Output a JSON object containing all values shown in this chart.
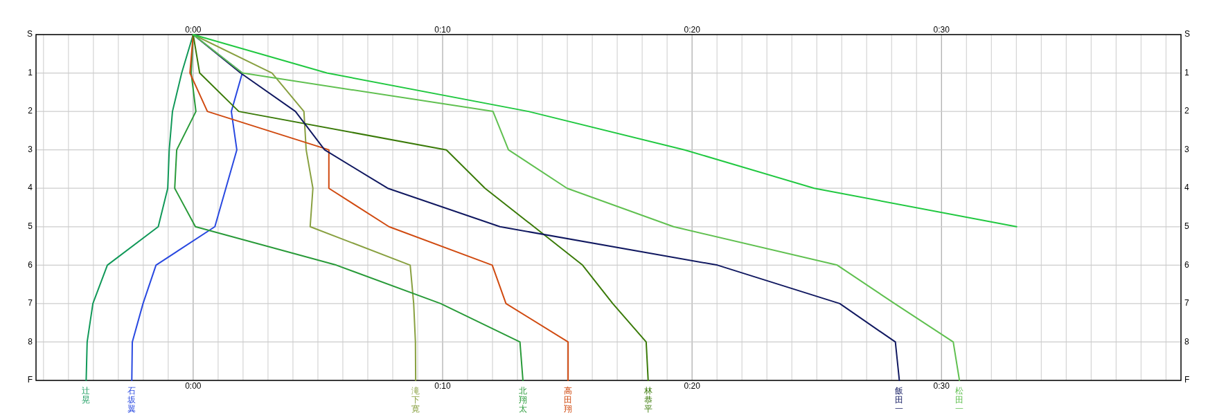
{
  "chart_data": {
    "type": "line",
    "xlim": [
      -6.3,
      39.6
    ],
    "ylim": [
      9,
      0
    ],
    "x2lim": [
      -6.3,
      39.6
    ],
    "y2lim": [
      9,
      0
    ],
    "grid": true,
    "line_style": "solid",
    "xticks": [
      {
        "value": -6,
        "label": null
      },
      {
        "value": -5,
        "label": null
      },
      {
        "value": -4,
        "label": null
      },
      {
        "value": -3,
        "label": null
      },
      {
        "value": -2,
        "label": null
      },
      {
        "value": -1,
        "label": null
      },
      {
        "value": 0,
        "label": "0:00"
      },
      {
        "value": 1,
        "label": null
      },
      {
        "value": 2,
        "label": null
      },
      {
        "value": 3,
        "label": null
      },
      {
        "value": 4,
        "label": null
      },
      {
        "value": 5,
        "label": null
      },
      {
        "value": 6,
        "label": null
      },
      {
        "value": 7,
        "label": null
      },
      {
        "value": 8,
        "label": null
      },
      {
        "value": 9,
        "label": null
      },
      {
        "value": 10,
        "label": "0:10"
      },
      {
        "value": 11,
        "label": null
      },
      {
        "value": 12,
        "label": null
      },
      {
        "value": 13,
        "label": null
      },
      {
        "value": 14,
        "label": null
      },
      {
        "value": 15,
        "label": null
      },
      {
        "value": 16,
        "label": null
      },
      {
        "value": 17,
        "label": null
      },
      {
        "value": 18,
        "label": null
      },
      {
        "value": 19,
        "label": null
      },
      {
        "value": 20,
        "label": "0:20"
      },
      {
        "value": 21,
        "label": null
      },
      {
        "value": 22,
        "label": null
      },
      {
        "value": 23,
        "label": null
      },
      {
        "value": 24,
        "label": null
      },
      {
        "value": 25,
        "label": null
      },
      {
        "value": 26,
        "label": null
      },
      {
        "value": 27,
        "label": null
      },
      {
        "value": 28,
        "label": null
      },
      {
        "value": 29,
        "label": null
      },
      {
        "value": 30,
        "label": "0:30"
      },
      {
        "value": 31,
        "label": null
      },
      {
        "value": 32,
        "label": null
      },
      {
        "value": 33,
        "label": null
      },
      {
        "value": 34,
        "label": null
      },
      {
        "value": 35,
        "label": null
      },
      {
        "value": 36,
        "label": null
      },
      {
        "value": 37,
        "label": null
      },
      {
        "value": 38,
        "label": null
      },
      {
        "value": 39,
        "label": null
      }
    ],
    "x2ticks": [
      {
        "value": 0,
        "label": "0:00"
      },
      {
        "value": 10,
        "label": "0:10"
      },
      {
        "value": 20,
        "label": "0:20"
      },
      {
        "value": 30,
        "label": "0:30"
      }
    ],
    "yticks": [
      {
        "value": 0,
        "label": "S"
      },
      1,
      2,
      3,
      4,
      5,
      6,
      7,
      8,
      {
        "value": 9,
        "label": "F"
      }
    ],
    "y2ticks": [
      {
        "value": 0,
        "label": "S"
      },
      1,
      2,
      3,
      4,
      5,
      6,
      7,
      8,
      {
        "value": 9,
        "label": "F"
      }
    ],
    "series": [
      {
        "name": "辻晃",
        "color": "#109858",
        "x": [
          0,
          -0.46,
          -0.83,
          -0.96,
          -1.02,
          -1.4,
          -3.44,
          -4.02,
          -4.25,
          -4.29
        ],
        "values": [
          0,
          1,
          2,
          3,
          4,
          5,
          6,
          7,
          8,
          9
        ]
      },
      {
        "name": "石坂翼",
        "color": "#2848e0",
        "x": [
          0,
          1.97,
          1.53,
          1.75,
          1.31,
          0.87,
          -1.49,
          -2.01,
          -2.44,
          -2.46
        ],
        "values": [
          0,
          1,
          2,
          3,
          4,
          5,
          6,
          7,
          8,
          9
        ]
      },
      {
        "name": "滝下寛",
        "color": "#88a040",
        "x": [
          0,
          3.16,
          4.44,
          4.53,
          4.8,
          4.69,
          8.7,
          8.84,
          8.91,
          8.92
        ],
        "values": [
          0,
          1,
          2,
          3,
          4,
          5,
          6,
          7,
          8,
          9
        ]
      },
      {
        "name": "北翔太",
        "color": "#289a38",
        "x": [
          0,
          -0.08,
          0.11,
          -0.66,
          -0.74,
          0.09,
          5.74,
          9.92,
          13.1,
          13.22
        ],
        "values": [
          0,
          1,
          2,
          3,
          4,
          5,
          6,
          7,
          8,
          9
        ]
      },
      {
        "name": "高田翔",
        "color": "#d04a10",
        "x": [
          0,
          -0.13,
          0.57,
          5.44,
          5.44,
          7.85,
          11.99,
          12.54,
          15.03,
          15.03
        ],
        "values": [
          0,
          1,
          2,
          3,
          4,
          5,
          6,
          7,
          8,
          9
        ]
      },
      {
        "name": "林恭平",
        "color": "#3a7a08",
        "x": [
          0,
          0.26,
          1.83,
          10.15,
          11.7,
          13.66,
          15.61,
          16.82,
          18.16,
          18.24
        ],
        "values": [
          0,
          1,
          2,
          3,
          4,
          5,
          6,
          7,
          8,
          9
        ]
      },
      {
        "name": "飯田一",
        "color": "#101860",
        "x": [
          0,
          1.9,
          4.1,
          5.27,
          7.8,
          12.3,
          21.02,
          25.92,
          28.15,
          28.31
        ],
        "values": [
          0,
          1,
          2,
          3,
          4,
          5,
          6,
          7,
          8,
          9
        ]
      },
      {
        "name": "松田一",
        "color": "#60c050",
        "x": [
          0,
          1.97,
          12.02,
          12.64,
          14.99,
          19.26,
          25.82,
          28.12,
          30.47,
          30.72
        ],
        "values": [
          0,
          1,
          2,
          3,
          4,
          5,
          6,
          7,
          8,
          9
        ]
      },
      {
        "color": "#20c840",
        "x": [
          0,
          5.36,
          13.44,
          19.7,
          24.9,
          33.01
        ],
        "values": [
          0,
          1,
          2,
          3,
          4,
          5
        ]
      }
    ]
  }
}
